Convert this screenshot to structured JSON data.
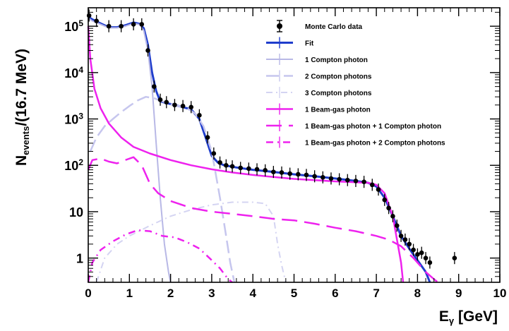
{
  "chart_data": {
    "type": "line",
    "xlabel": "E",
    "xlabel_sub": "γ",
    "xlabel_unit": " [GeV]",
    "ylabel": "N",
    "ylabel_sub": "events",
    "ylabel_unit": "/(16.7 MeV)",
    "xlim": [
      0,
      10
    ],
    "ylim": [
      0.3,
      250000
    ],
    "yscale": "log",
    "grid": false,
    "legend_position": "top-right",
    "x_ticks": [
      0,
      1,
      2,
      3,
      4,
      5,
      6,
      7,
      8,
      9,
      10
    ],
    "y_ticks": [
      {
        "value": 1,
        "base": "1",
        "exp": ""
      },
      {
        "value": 10,
        "base": "10",
        "exp": ""
      },
      {
        "value": 100,
        "base": "10",
        "exp": "2"
      },
      {
        "value": 1000,
        "base": "10",
        "exp": "3"
      },
      {
        "value": 10000,
        "base": "10",
        "exp": "4"
      },
      {
        "value": 100000,
        "base": "10",
        "exp": "5"
      }
    ],
    "series": [
      {
        "name": "Monte Carlo data",
        "kind": "points",
        "color": "#000000",
        "x": [
          0.02,
          0.2,
          0.5,
          0.8,
          1.1,
          1.3,
          1.45,
          1.6,
          1.75,
          1.9,
          2.1,
          2.3,
          2.5,
          2.7,
          2.9,
          3.05,
          3.2,
          3.35,
          3.5,
          3.7,
          3.9,
          4.1,
          4.3,
          4.5,
          4.7,
          4.9,
          5.1,
          5.3,
          5.5,
          5.7,
          5.9,
          6.1,
          6.3,
          6.5,
          6.7,
          6.9,
          7.05,
          7.2,
          7.3,
          7.4,
          7.5,
          7.6,
          7.7,
          7.8,
          7.9,
          8.0,
          8.1,
          8.2,
          8.3,
          8.9
        ],
        "y": [
          170000,
          130000,
          100000,
          100000,
          110000,
          110000,
          30000,
          5000,
          2600,
          2300,
          2000,
          1900,
          1800,
          1200,
          400,
          180,
          115,
          100,
          95,
          88,
          85,
          82,
          78,
          72,
          70,
          66,
          64,
          62,
          58,
          55,
          52,
          50,
          48,
          46,
          44,
          38,
          30,
          18,
          12,
          8,
          5,
          3,
          2.5,
          2,
          1.5,
          1.2,
          1.3,
          1,
          0.8,
          1
        ]
      },
      {
        "name": "Fit",
        "kind": "line",
        "color": "#1f3dcc",
        "dash": "",
        "width": 3,
        "x": [
          0,
          0.1,
          0.3,
          0.5,
          0.7,
          0.9,
          1.1,
          1.25,
          1.35,
          1.45,
          1.55,
          1.65,
          1.75,
          1.9,
          2.2,
          2.5,
          2.7,
          2.85,
          3.0,
          3.15,
          3.3,
          3.6,
          4.0,
          4.5,
          5.0,
          5.5,
          6.0,
          6.5,
          6.8,
          7.0,
          7.2,
          7.4,
          7.6,
          7.8,
          8.0,
          8.2,
          8.3
        ],
        "y": [
          160000,
          140000,
          115000,
          95000,
          95000,
          105000,
          120000,
          112000,
          90000,
          40000,
          10000,
          4000,
          2400,
          2200,
          1900,
          1600,
          1000,
          400,
          160,
          115,
          100,
          90,
          80,
          72,
          64,
          58,
          52,
          46,
          42,
          35,
          20,
          8,
          3,
          1.6,
          0.9,
          0.5,
          0.3
        ]
      },
      {
        "name": "1 Compton photon",
        "kind": "line",
        "color": "#b8b8e6",
        "dash": "",
        "width": 2,
        "x": [
          0,
          0.1,
          0.3,
          0.5,
          0.7,
          0.9,
          1.1,
          1.25,
          1.35,
          1.45,
          1.55,
          1.65,
          1.75,
          1.85,
          1.95,
          2.0
        ],
        "y": [
          150000,
          130000,
          110000,
          92000,
          92000,
          100000,
          115000,
          108000,
          80000,
          30000,
          5000,
          300,
          20,
          2,
          0.5,
          0.3
        ]
      },
      {
        "name": "2 Compton photons",
        "kind": "line",
        "color": "#c6c6ee",
        "dash": "18,7",
        "width": 2.5,
        "x": [
          0.05,
          0.2,
          0.4,
          0.6,
          0.8,
          1.0,
          1.2,
          1.4,
          1.6,
          1.8,
          2.0,
          2.2,
          2.4,
          2.6,
          2.8,
          3.0,
          3.2,
          3.35,
          3.45,
          3.55
        ],
        "y": [
          200,
          400,
          700,
          1000,
          1400,
          1900,
          2500,
          3000,
          2800,
          2400,
          2100,
          1900,
          1700,
          1300,
          700,
          200,
          20,
          3,
          0.8,
          0.3
        ]
      },
      {
        "name": "3 Compton photons",
        "kind": "line",
        "color": "#d4d4f2",
        "dash": "9,5,2,5",
        "width": 2,
        "x": [
          0.2,
          0.4,
          0.7,
          1.0,
          1.5,
          2.0,
          2.5,
          3.0,
          3.5,
          4.0,
          4.3,
          4.5,
          4.6,
          4.7,
          4.8
        ],
        "y": [
          0.3,
          1,
          2,
          3,
          5,
          8,
          11,
          14,
          16,
          16,
          15,
          8,
          2,
          0.7,
          0.3
        ]
      },
      {
        "name": "1 Beam-gas photon",
        "kind": "line",
        "color": "#ee22ee",
        "dash": "",
        "width": 2.5,
        "x": [
          0,
          0.05,
          0.15,
          0.3,
          0.5,
          0.8,
          1.1,
          1.5,
          2.0,
          2.5,
          3.0,
          3.5,
          4.0,
          4.5,
          5.0,
          5.5,
          6.0,
          6.5,
          6.8,
          7.0,
          7.2,
          7.4,
          7.5,
          7.6,
          7.65
        ],
        "y": [
          100000,
          20000,
          4500,
          1700,
          800,
          400,
          250,
          180,
          130,
          100,
          82,
          70,
          62,
          56,
          51,
          48,
          45,
          43,
          42,
          38,
          25,
          8,
          2.5,
          0.8,
          0.3
        ]
      },
      {
        "name": "1 Beam-gas photon + 1 Compton photon",
        "kind": "line",
        "color": "#ee22ee",
        "dash": "22,10",
        "width": 2.5,
        "x": [
          0,
          0.1,
          0.3,
          0.5,
          0.7,
          0.9,
          1.1,
          1.3,
          1.5,
          1.7,
          2.0,
          2.5,
          3.0,
          3.5,
          4.0,
          4.5,
          5.0,
          5.5,
          6.0,
          6.5,
          7.0,
          7.3,
          7.6,
          7.9,
          8.2,
          8.4,
          8.5
        ],
        "y": [
          80,
          130,
          140,
          120,
          110,
          130,
          150,
          100,
          40,
          25,
          17,
          12,
          10,
          9,
          8,
          7,
          6.5,
          5.5,
          4.5,
          3.8,
          3,
          2.5,
          1.8,
          1,
          0.5,
          0.35,
          0.3
        ]
      },
      {
        "name": "1 Beam-gas photon + 2 Compton photons",
        "kind": "line",
        "color": "#ee22ee",
        "dash": "10,6,2,6",
        "width": 2.5,
        "x": [
          0,
          0.1,
          0.3,
          0.6,
          0.9,
          1.2,
          1.5,
          1.8,
          2.1,
          2.4,
          2.7,
          3.0,
          3.2,
          3.4,
          3.5
        ],
        "y": [
          0.3,
          0.8,
          1.5,
          2.3,
          3.2,
          4,
          3.8,
          3,
          2.8,
          2.2,
          1.6,
          0.9,
          0.6,
          0.35,
          0.3
        ]
      }
    ]
  }
}
